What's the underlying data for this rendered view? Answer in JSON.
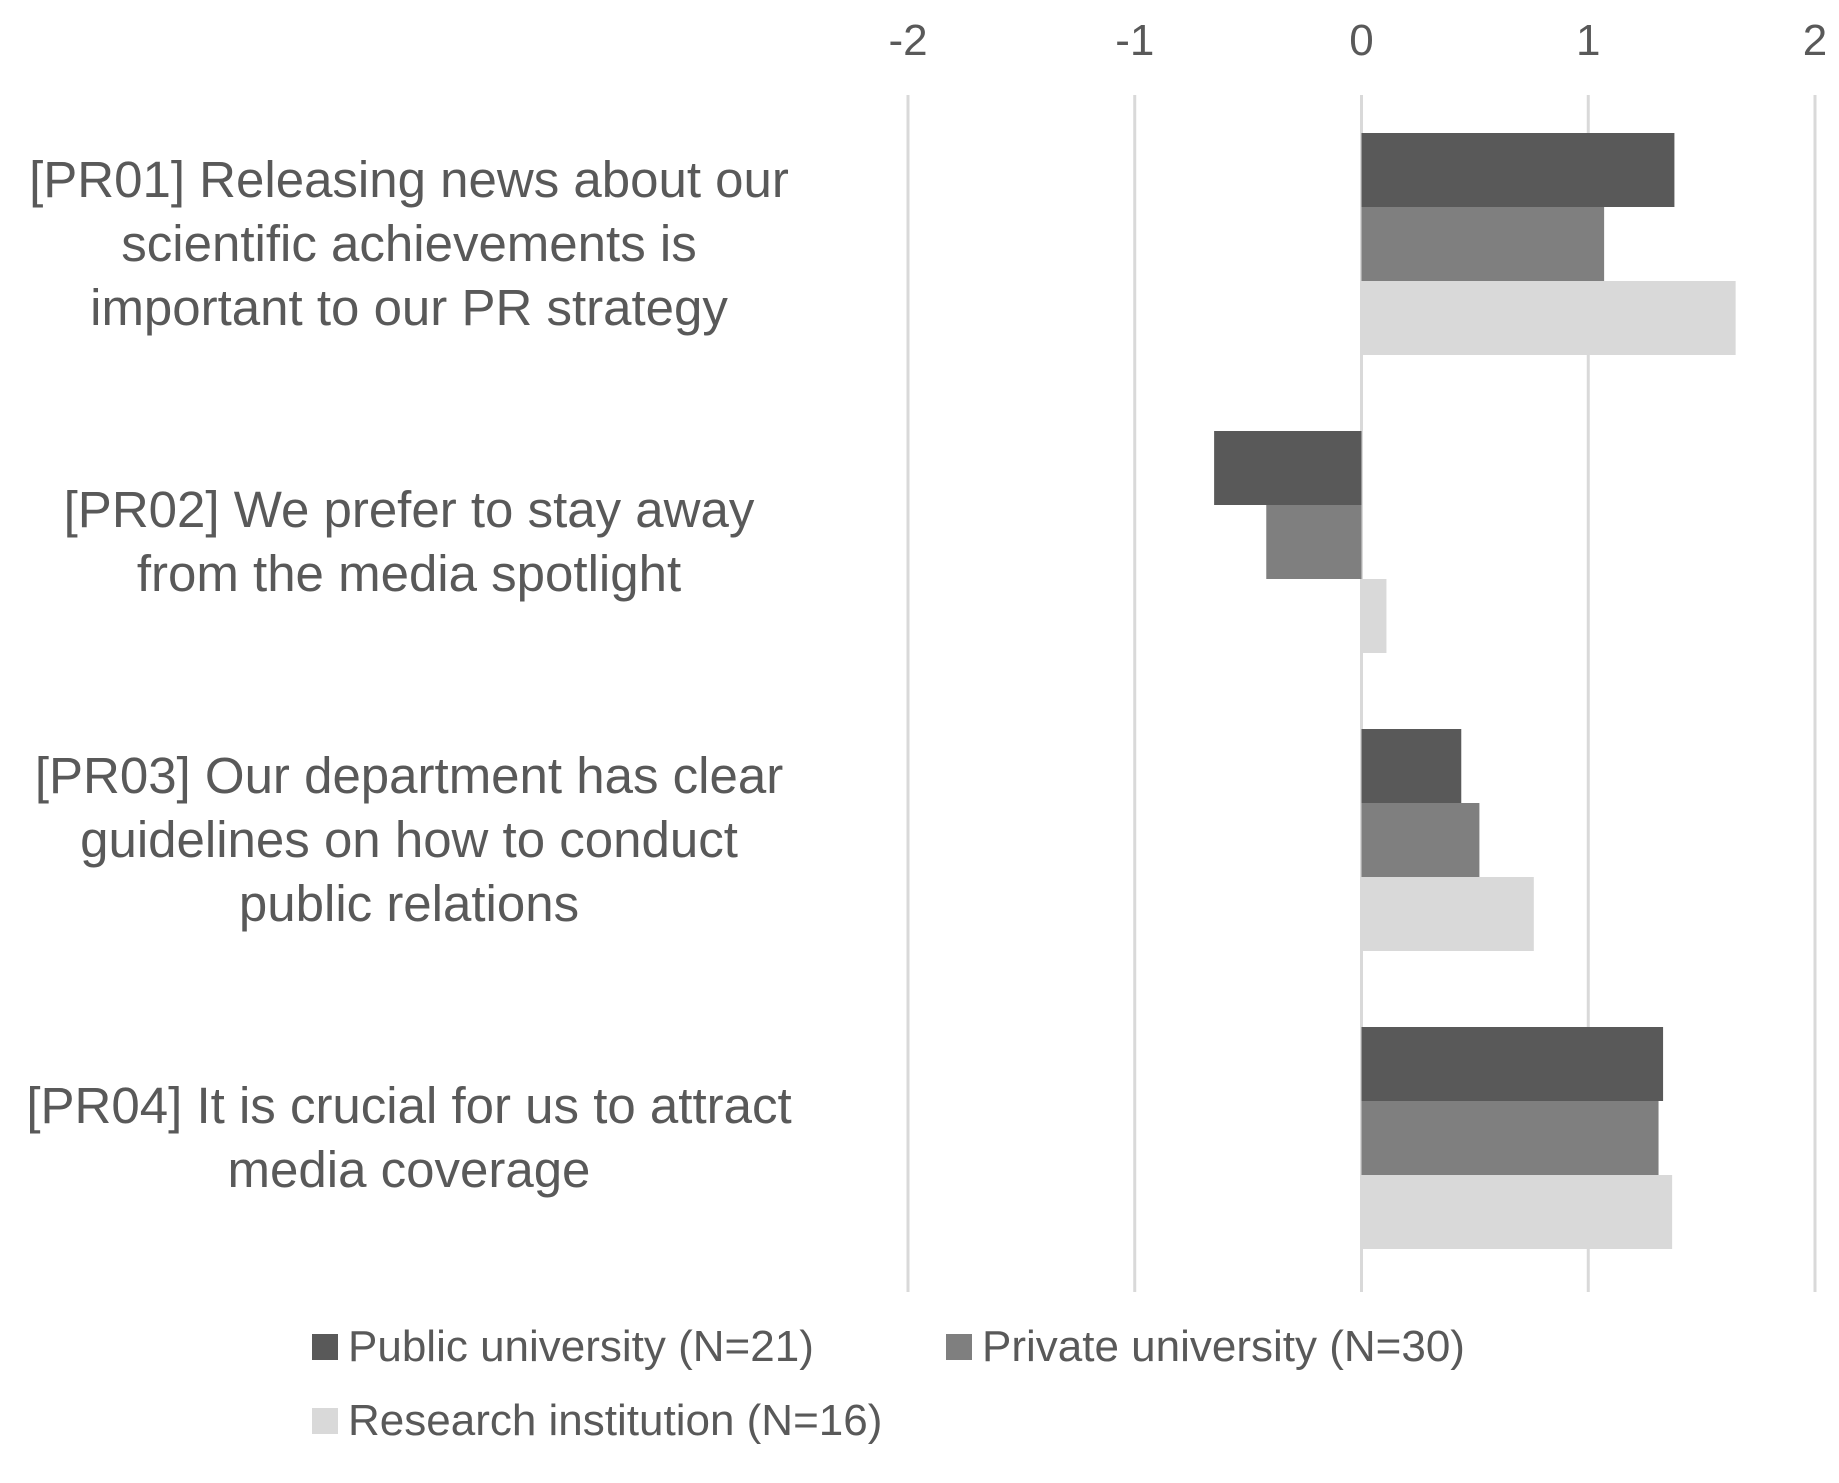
{
  "chart_data": {
    "type": "bar",
    "orientation": "horizontal",
    "categories": [
      "[PR01] Releasing news about our scientific achievements is important to our PR strategy",
      "[PR02] We prefer to stay away from the media spotlight",
      "[PR03] Our department has clear guidelines on how to conduct public relations",
      "[PR04] It is crucial for us to attract media coverage"
    ],
    "category_lines": [
      [
        "[PR01] Releasing news about our",
        "scientific achievements is",
        "important to our PR strategy"
      ],
      [
        "[PR02] We prefer to stay away",
        "from the media spotlight"
      ],
      [
        "[PR03] Our department has clear",
        "guidelines on how to conduct",
        "public relations"
      ],
      [
        "[PR04] It is crucial for us to attract",
        "media coverage"
      ]
    ],
    "series": [
      {
        "name": "Public university (N=21)",
        "color": "#595959",
        "values": [
          1.38,
          -0.65,
          0.44,
          1.33
        ]
      },
      {
        "name": "Private university (N=30)",
        "color": "#7f7f7f",
        "values": [
          1.07,
          -0.42,
          0.52,
          1.31
        ]
      },
      {
        "name": "Research institution (N=16)",
        "color": "#d9d9d9",
        "values": [
          1.65,
          0.11,
          0.76,
          1.37
        ]
      }
    ],
    "xlim": [
      -2,
      2
    ],
    "x_ticks": [
      "-2",
      "-1",
      "0",
      "1",
      "2"
    ],
    "x_tick_values": [
      -2,
      -1,
      0,
      1,
      2
    ],
    "axis_position": "top",
    "grid": true,
    "legend_position": "bottom",
    "title": "",
    "xlabel": "",
    "ylabel": ""
  }
}
